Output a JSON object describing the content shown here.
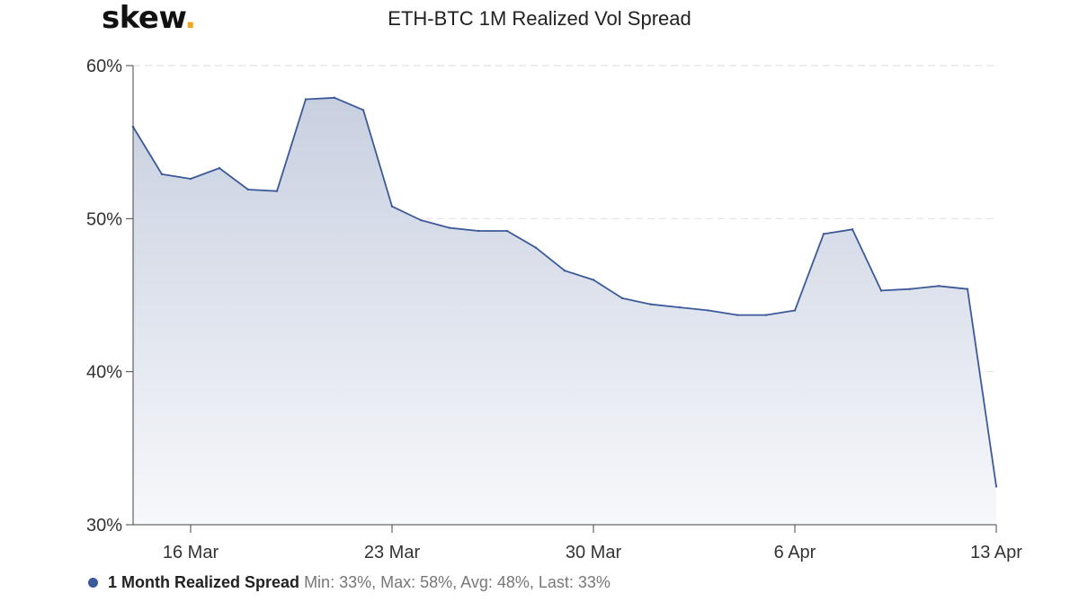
{
  "header": {
    "logo_text": "skew",
    "logo_dot": ".",
    "title": "ETH-BTC 1M Realized Vol Spread"
  },
  "colors": {
    "line": "#3c5a9a",
    "fill_top": "#c8d0e0",
    "fill_bottom": "#f7f8fb",
    "grid": "#e2e2e2",
    "axis": "#444444",
    "logo_dot": "#f0a51b"
  },
  "chart_data": {
    "type": "area",
    "title": "ETH-BTC 1M Realized Vol Spread",
    "xlabel": "",
    "ylabel": "",
    "ylim": [
      30,
      60
    ],
    "yticks": [
      30,
      40,
      50,
      60
    ],
    "ytick_labels": [
      "30%",
      "40%",
      "50%",
      "60%"
    ],
    "xlim": [
      "2020-03-14",
      "2020-04-13"
    ],
    "xticks": [
      "2020-03-16",
      "2020-03-23",
      "2020-03-30",
      "2020-04-06",
      "2020-04-13"
    ],
    "xtick_labels": [
      "16 Mar",
      "23 Mar",
      "30 Mar",
      "6 Apr",
      "13 Apr"
    ],
    "grid": true,
    "legend_position": "bottom-left",
    "series": [
      {
        "name": "1 Month Realized Spread",
        "x": [
          "2020-03-14",
          "2020-03-15",
          "2020-03-16",
          "2020-03-17",
          "2020-03-18",
          "2020-03-19",
          "2020-03-20",
          "2020-03-21",
          "2020-03-22",
          "2020-03-23",
          "2020-03-24",
          "2020-03-25",
          "2020-03-26",
          "2020-03-27",
          "2020-03-28",
          "2020-03-29",
          "2020-03-30",
          "2020-03-31",
          "2020-04-01",
          "2020-04-02",
          "2020-04-03",
          "2020-04-04",
          "2020-04-05",
          "2020-04-06",
          "2020-04-07",
          "2020-04-08",
          "2020-04-09",
          "2020-04-10",
          "2020-04-11",
          "2020-04-12",
          "2020-04-13"
        ],
        "values": [
          56.0,
          52.9,
          52.6,
          53.3,
          51.9,
          51.8,
          57.8,
          57.9,
          57.1,
          50.8,
          49.9,
          49.4,
          49.2,
          49.2,
          48.1,
          46.6,
          46.0,
          44.8,
          44.4,
          44.2,
          44.0,
          43.7,
          43.7,
          44.0,
          49.0,
          49.3,
          45.3,
          45.4,
          45.6,
          45.4,
          32.5
        ]
      }
    ]
  },
  "legend": {
    "name": "1 Month Realized Spread",
    "stats": "Min: 33%, Max: 58%, Avg: 48%, Last: 33%"
  }
}
